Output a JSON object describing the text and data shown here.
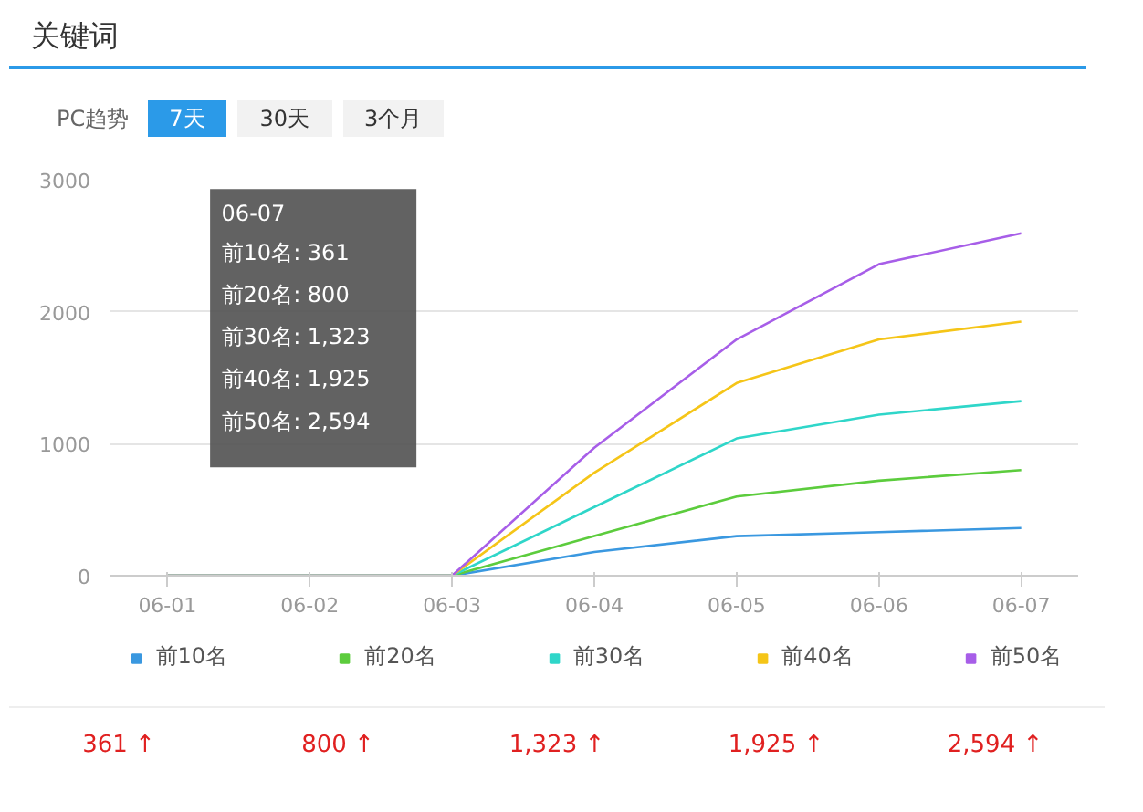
{
  "chart_data": {
    "type": "line",
    "title": "关键词",
    "categories": [
      "06-01",
      "06-02",
      "06-03",
      "06-04",
      "06-05",
      "06-06",
      "06-07"
    ],
    "series": [
      {
        "name": "前10名",
        "color": "#3a98e0",
        "values": [
          0,
          0,
          0,
          180,
          300,
          330,
          361
        ]
      },
      {
        "name": "前20名",
        "color": "#5ccc3d",
        "values": [
          0,
          0,
          0,
          300,
          600,
          720,
          800
        ]
      },
      {
        "name": "前30名",
        "color": "#2fd6c9",
        "values": [
          0,
          0,
          0,
          520,
          1040,
          1220,
          1323
        ]
      },
      {
        "name": "前40名",
        "color": "#f5c518",
        "values": [
          0,
          0,
          0,
          780,
          1460,
          1790,
          1925
        ]
      },
      {
        "name": "前50名",
        "color": "#a75ee8",
        "values": [
          0,
          0,
          0,
          970,
          1790,
          2360,
          2594
        ]
      }
    ],
    "ylim": [
      0,
      3000
    ],
    "yticks": [
      0,
      1000,
      2000,
      3000
    ],
    "grid": "y",
    "legend": "bottom",
    "marker": "none",
    "line_style": "solid",
    "annotations": [
      "PC趋势",
      "7天",
      "30天",
      "3个月",
      "06-07",
      "前10名: 361",
      "前20名: 800",
      "前30名: 1,323",
      "前40名: 1,925",
      "前50名: 2,594",
      "361 ↑",
      "800 ↑",
      "1,323 ↑",
      "1,925 ↑",
      "2,594 ↑"
    ]
  }
}
